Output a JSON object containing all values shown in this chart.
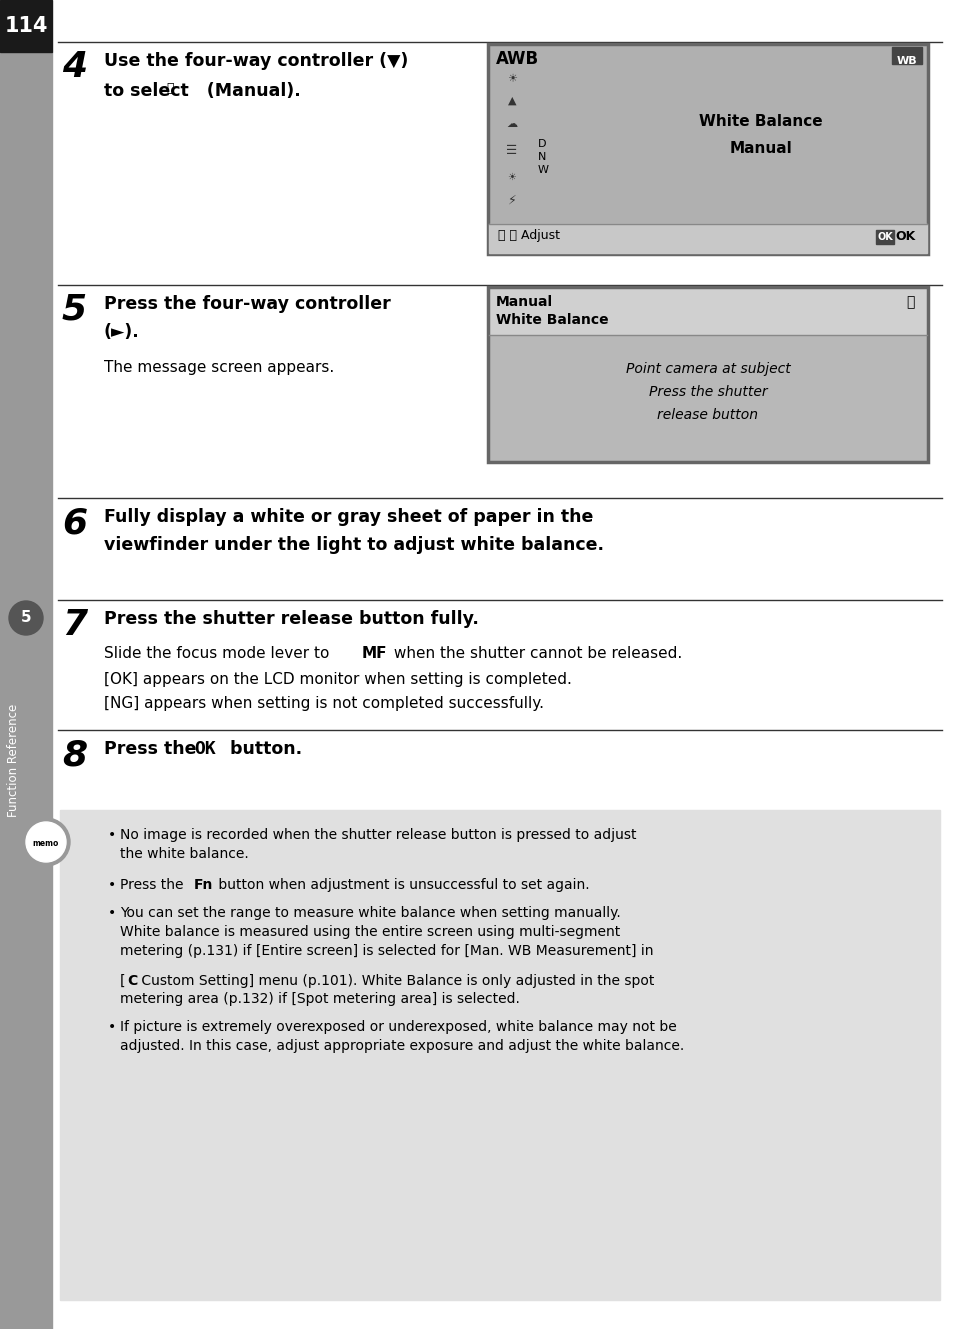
{
  "page_number": "114",
  "page_bg": "#ffffff",
  "sidebar_label": "Function Reference",
  "sidebar_circle_num": "5",
  "step4_num": "4",
  "step4_line1": "Use the four-way controller (▼)",
  "step4_line2": "to select   (Manual).",
  "step5_num": "5",
  "step5_line1": "Press the four-way controller",
  "step5_line2": "(►).",
  "step5_sub": "The message screen appears.",
  "step6_num": "6",
  "step6_line1": "Fully display a white or gray sheet of paper in the",
  "step6_line2": "viewfinder under the light to adjust white balance.",
  "step7_num": "7",
  "step7_head": "Press the shutter release button fully.",
  "step7_sub1a": "Slide the focus mode lever to ",
  "step7_sub1b": "MF",
  "step7_sub1c": " when the shutter cannot be released.",
  "step7_sub2": "[OK] appears on the LCD monitor when setting is completed.",
  "step7_sub3": "[NG] appears when setting is not completed successfully.",
  "step8_num": "8",
  "step8_head_a": "Press the ",
  "step8_head_b": "OK",
  "step8_head_c": " button.",
  "memo_b1": "No image is recorded when the shutter release button is pressed to adjust\nthe white balance.",
  "memo_b2a": "Press the ",
  "memo_b2b": "Fn",
  "memo_b2c": " button when adjustment is unsuccessful to set again.",
  "memo_b3": "You can set the range to measure white balance when setting manually.\nWhite balance is measured using the entire screen using multi-segment\nmetering (p.131) if [Entire screen] is selected for [Man. WB Measurement] in",
  "memo_b3b_a": "[",
  "memo_b3b_b": "C",
  "memo_b3b_c": " Custom Setting] menu (p.101). White Balance is only adjusted in the spot",
  "memo_b3c": "metering area (p.132) if [Spot metering area] is selected.",
  "memo_b4": "If picture is extremely overexposed or underexposed, white balance may not be\nadjusted. In this case, adjust appropriate exposure and adjust the white balance.",
  "scr1_awb": "AWB",
  "scr1_wb": "WB",
  "scr1_dnw": [
    "D",
    "N",
    "W"
  ],
  "scr1_center": "White Balance\nManual",
  "scr1_bot_l": " Adjust",
  "scr1_bot_r": "OK",
  "scr2_h1": "Manual",
  "scr2_h2": "White Balance",
  "scr2_body": "Point camera at subject\nPress the shutter\nrelease button"
}
